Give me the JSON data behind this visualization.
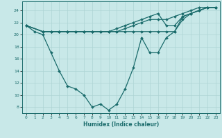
{
  "xlabel": "Humidex (Indice chaleur)",
  "ylabel": "",
  "xlim": [
    -0.5,
    23.5
  ],
  "ylim": [
    7,
    25.5
  ],
  "xticks": [
    0,
    1,
    2,
    3,
    4,
    5,
    6,
    7,
    8,
    9,
    10,
    11,
    12,
    13,
    14,
    15,
    16,
    17,
    18,
    19,
    20,
    21,
    22,
    23
  ],
  "yticks": [
    8,
    10,
    12,
    14,
    16,
    18,
    20,
    22,
    24
  ],
  "bg_color": "#c8e8e8",
  "grid_color": "#aed4d4",
  "line_color": "#1a6b6b",
  "line1_x": [
    0,
    1,
    2,
    3,
    4,
    5,
    6,
    7,
    8,
    9,
    10,
    11,
    12,
    13,
    14,
    15,
    16,
    17,
    18,
    19,
    20,
    21,
    22,
    23
  ],
  "line1_y": [
    21.5,
    20.5,
    20.0,
    17.0,
    14.0,
    11.5,
    11.0,
    10.0,
    8.0,
    8.5,
    7.5,
    8.5,
    11.0,
    14.5,
    19.5,
    17.0,
    17.0,
    19.5,
    20.5,
    23.0,
    23.5,
    24.0,
    24.5,
    24.5
  ],
  "line2_x": [
    0,
    2,
    3,
    4,
    5,
    6,
    7,
    8,
    9,
    10,
    11,
    12,
    13,
    14,
    15,
    16,
    17,
    18,
    19,
    20,
    21,
    22,
    23
  ],
  "line2_y": [
    21.5,
    20.5,
    20.5,
    20.5,
    20.5,
    20.5,
    20.5,
    20.5,
    20.5,
    20.5,
    20.5,
    21.0,
    21.5,
    22.0,
    22.5,
    22.5,
    22.5,
    23.0,
    23.5,
    24.0,
    24.5,
    24.5,
    24.5
  ],
  "line3_x": [
    0,
    2,
    3,
    4,
    5,
    6,
    7,
    8,
    9,
    10,
    11,
    12,
    13,
    14,
    15,
    16,
    17,
    18,
    19,
    20,
    21,
    22,
    23
  ],
  "line3_y": [
    21.5,
    20.5,
    20.5,
    20.5,
    20.5,
    20.5,
    20.5,
    20.5,
    20.5,
    20.5,
    21.0,
    21.5,
    22.0,
    22.5,
    23.0,
    23.5,
    21.5,
    21.5,
    23.0,
    23.5,
    24.0,
    24.5,
    24.5
  ],
  "line4_x": [
    0,
    2,
    3,
    4,
    5,
    6,
    7,
    8,
    9,
    10,
    11,
    12,
    13,
    14,
    15,
    16,
    17,
    18,
    19,
    20,
    21,
    22,
    23
  ],
  "line4_y": [
    21.5,
    20.5,
    20.5,
    20.5,
    20.5,
    20.5,
    20.5,
    20.5,
    20.5,
    20.5,
    20.5,
    20.5,
    20.5,
    20.5,
    20.5,
    20.5,
    20.5,
    20.5,
    22.5,
    23.5,
    24.0,
    24.5,
    24.5
  ],
  "marker": "D",
  "markersize": 2.0,
  "linewidth": 0.9,
  "figsize": [
    3.2,
    2.0
  ],
  "dpi": 100
}
